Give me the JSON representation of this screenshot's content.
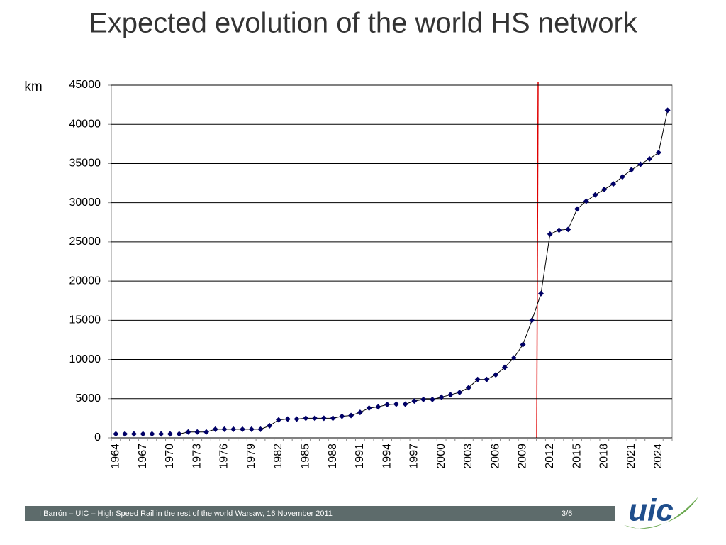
{
  "chart_data": {
    "type": "line",
    "title": "Expected evolution of the world HS network",
    "ylabel": "km",
    "categories": [
      "1964",
      null,
      null,
      "1967",
      null,
      null,
      "1970",
      null,
      null,
      "1973",
      null,
      null,
      "1976",
      null,
      null,
      "1979",
      null,
      null,
      "1982",
      null,
      null,
      "1985",
      null,
      null,
      "1988",
      null,
      null,
      "1991",
      null,
      null,
      "1994",
      null,
      null,
      "1997",
      null,
      null,
      "2000",
      null,
      null,
      "2003",
      null,
      null,
      "2006",
      null,
      null,
      "2009",
      null,
      null,
      "2012",
      null,
      null,
      "2015",
      null,
      null,
      "2018",
      null,
      null,
      "2021",
      null,
      null,
      "2024",
      null
    ],
    "series": [
      {
        "name": "HS network",
        "color": "#000066",
        "line_color": "#000000",
        "values": [
          500,
          500,
          500,
          500,
          500,
          500,
          500,
          500,
          750,
          750,
          750,
          1100,
          1100,
          1100,
          1100,
          1100,
          1100,
          1550,
          2300,
          2400,
          2400,
          2500,
          2500,
          2500,
          2500,
          2750,
          2850,
          3250,
          3800,
          3950,
          4250,
          4300,
          4300,
          4700,
          4900,
          4900,
          5200,
          5500,
          5800,
          6400,
          7450,
          7450,
          8050,
          9000,
          10200,
          11900,
          15000,
          18400,
          26000,
          26500,
          26600,
          29200,
          30200,
          31000,
          31700,
          32400,
          33300,
          34200,
          34900,
          35600,
          36400,
          41800
        ]
      }
    ],
    "ylim": [
      0,
      45000
    ],
    "yticks": [
      0,
      5000,
      10000,
      15000,
      20000,
      25000,
      30000,
      35000,
      40000,
      45000
    ],
    "grid": true
  },
  "footer": {
    "text": "I Barrón – UIC – High Speed Rail in the rest of the world Warsaw, 16 November 2011",
    "page": "3/6"
  },
  "logo": "uic"
}
